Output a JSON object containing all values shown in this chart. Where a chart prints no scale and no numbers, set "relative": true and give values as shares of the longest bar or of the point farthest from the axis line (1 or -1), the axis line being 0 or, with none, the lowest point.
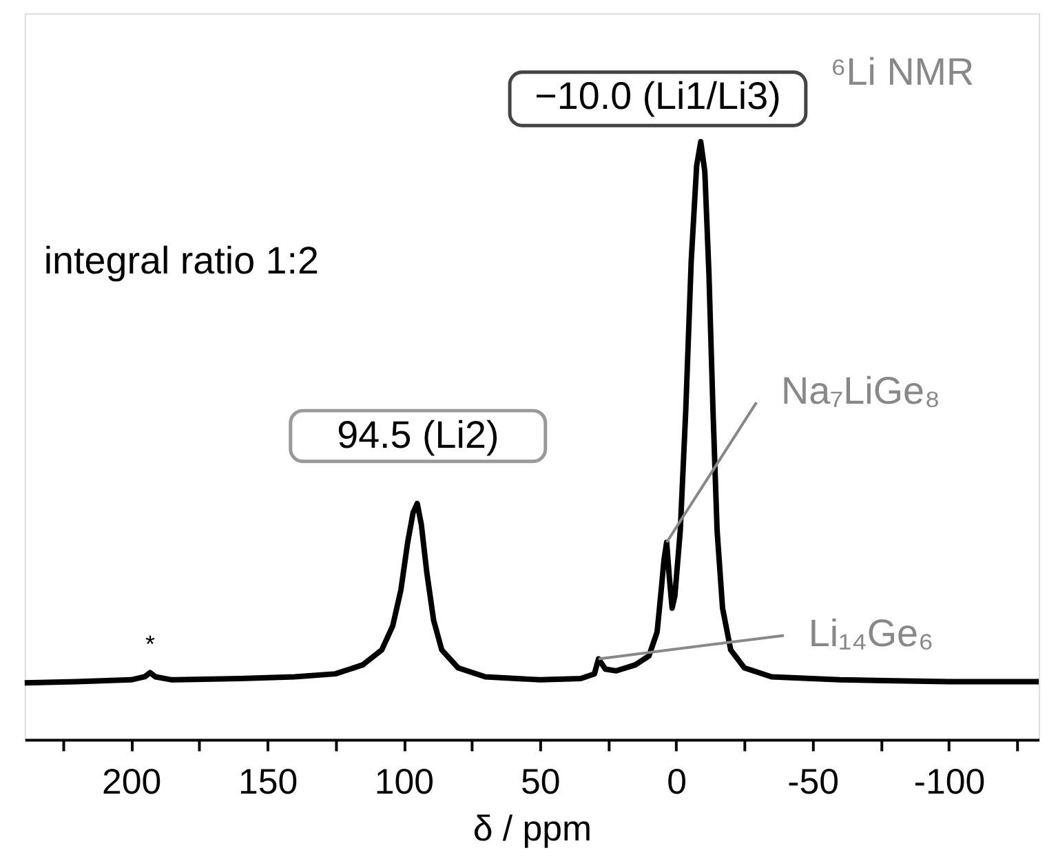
{
  "chart_data": {
    "type": "line",
    "xlabel": "δ / ppm",
    "relative": true,
    "tick_labels": "x",
    "grid": false,
    "marker": "none",
    "line_style": "solid",
    "xlim": [
      239,
      -133
    ],
    "xticks": [
      {
        "value": 225,
        "label": null
      },
      200,
      {
        "value": 175,
        "label": null
      },
      150,
      {
        "value": 125,
        "label": null
      },
      100,
      {
        "value": 75,
        "label": null
      },
      50,
      {
        "value": 25,
        "label": null
      },
      0,
      {
        "value": -25,
        "label": null
      },
      -50,
      {
        "value": -75,
        "label": null
      },
      -100,
      {
        "value": -125,
        "label": null
      }
    ],
    "series": [
      {
        "color": "#000000",
        "x": [
          239,
          220,
          200,
          195,
          193,
          191,
          185,
          160,
          140,
          125,
          115,
          108,
          104,
          101,
          98.5,
          96.5,
          95,
          93.5,
          91.5,
          89,
          86,
          80,
          70,
          50,
          35,
          30,
          28.5,
          26,
          22,
          15,
          10,
          7,
          5.5,
          4.5,
          3.5,
          2.5,
          1.5,
          0.5,
          -1.5,
          -3.5,
          -5.5,
          -7.5,
          -9,
          -10.5,
          -12,
          -13.5,
          -15,
          -17,
          -20,
          -25,
          -35,
          -60,
          -100,
          -133
        ],
        "values": [
          0.095,
          0.097,
          0.1,
          0.105,
          0.112,
          0.105,
          0.1,
          0.102,
          0.105,
          0.11,
          0.125,
          0.15,
          0.19,
          0.25,
          0.33,
          0.38,
          0.395,
          0.36,
          0.28,
          0.2,
          0.15,
          0.12,
          0.105,
          0.1,
          0.102,
          0.11,
          0.135,
          0.118,
          0.115,
          0.125,
          0.14,
          0.18,
          0.25,
          0.3,
          0.33,
          0.27,
          0.22,
          0.24,
          0.35,
          0.55,
          0.8,
          0.96,
          1.0,
          0.95,
          0.78,
          0.55,
          0.35,
          0.22,
          0.15,
          0.12,
          0.105,
          0.1,
          0.097,
          0.097
        ]
      }
    ],
    "annotations": [
      {
        "text": "−10.0 (Li1/Li3)",
        "x": -10,
        "y": 1.0
      },
      {
        "text": "94.5 (Li2)",
        "x": 94.5,
        "y": 0.395
      },
      "integral ratio 1:2",
      {
        "text": "Na₇LiGe₈",
        "x": 3.5,
        "y": 0.33
      },
      {
        "text": "Li₁₄Ge₆",
        "x": 28.5,
        "y": 0.135
      },
      {
        "text": "*",
        "x": 193,
        "y": 0.112
      },
      "⁶Li NMR"
    ]
  }
}
